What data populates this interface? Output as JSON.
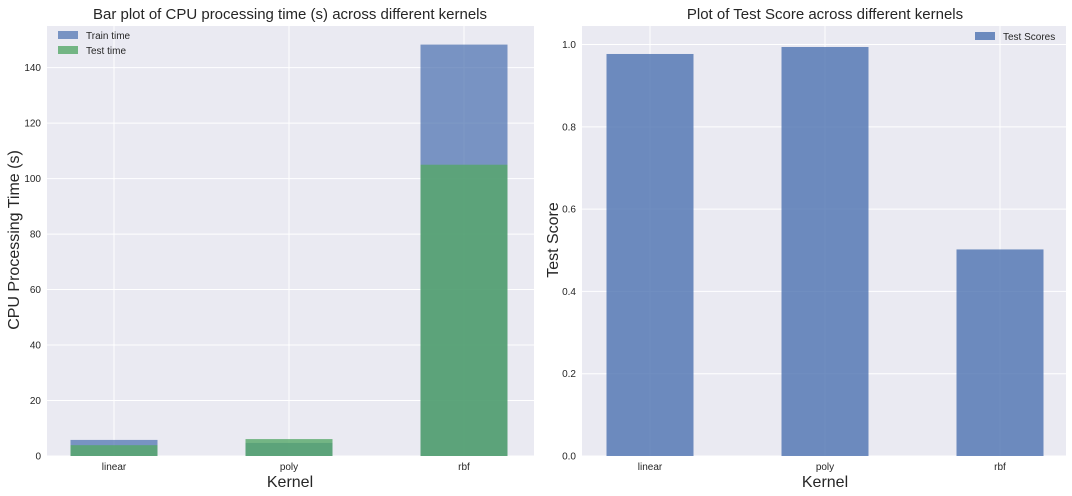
{
  "chart_data": [
    {
      "type": "bar",
      "title": "Bar plot of CPU processing time (s) across different kernels",
      "xlabel": "Kernel",
      "ylabel": "CPU Processing Time (s)",
      "categories": [
        "linear",
        "poly",
        "rbf"
      ],
      "series": [
        {
          "name": "Train time",
          "values": [
            5.8,
            4.7,
            148.3
          ],
          "color": "#4c72b0"
        },
        {
          "name": "Test time",
          "values": [
            3.9,
            6.1,
            105.0
          ],
          "color": "#55a868"
        }
      ],
      "ylim": [
        0,
        155
      ],
      "yticks": [
        0,
        20,
        40,
        60,
        80,
        100,
        120,
        140
      ],
      "grid": true,
      "legend": "top-left",
      "background": "#eaeaf2"
    },
    {
      "type": "bar",
      "title": "Plot of Test Score across different kernels",
      "xlabel": "Kernel",
      "ylabel": "Test Score",
      "categories": [
        "linear",
        "poly",
        "rbf"
      ],
      "series": [
        {
          "name": "Test Scores",
          "values": [
            0.977,
            0.994,
            0.502
          ],
          "color": "#4c72b0"
        }
      ],
      "ylim": [
        0,
        1.045
      ],
      "yticks": [
        "0.0",
        "0.2",
        "0.4",
        "0.6",
        "0.8",
        "1.0"
      ],
      "grid": true,
      "legend": "top-right",
      "background": "#eaeaf2"
    }
  ]
}
